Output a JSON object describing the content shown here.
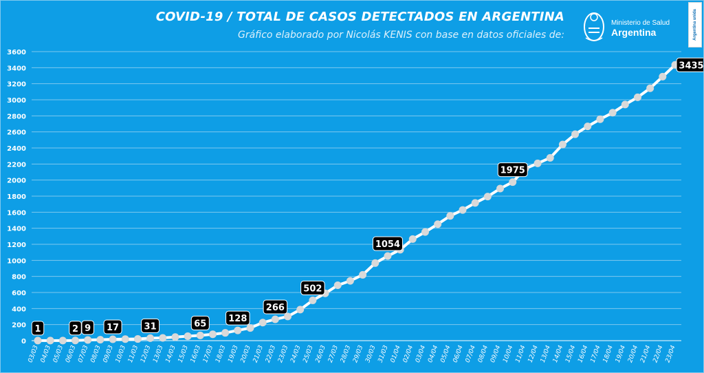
{
  "header": {
    "title": "COVID-19  /  TOTAL DE CASOS DETECTADOS EN ARGENTINA",
    "subtitle": "Gráfico elaborado por Nicolás KENIS con base en datos oficiales de:",
    "logo_line1": "Ministerio de Salud",
    "logo_line2": "Argentina",
    "badge_text": "Argentina unida"
  },
  "colors": {
    "background": "#0e9ee6",
    "grid": "#7fc8ee",
    "line": "#ffffff",
    "marker": "#d9d9d9",
    "label_bg": "#000000",
    "label_text": "#ffffff"
  },
  "chart_data": {
    "type": "line",
    "title": "COVID-19  /  TOTAL DE CASOS DETECTADOS EN ARGENTINA",
    "xlabel": "",
    "ylabel": "",
    "ylim": [
      0,
      3600
    ],
    "yticks": [
      0,
      200,
      400,
      600,
      800,
      1000,
      1200,
      1400,
      1600,
      1800,
      2000,
      2200,
      2400,
      2600,
      2800,
      3000,
      3200,
      3400,
      3600
    ],
    "grid": true,
    "legend": "none",
    "categories": [
      "03/03",
      "04/03",
      "05/03",
      "06/03",
      "07/03",
      "08/03",
      "09/03",
      "10/03",
      "11/03",
      "12/03",
      "13/03",
      "14/03",
      "15/03",
      "16/03",
      "17/03",
      "18/03",
      "19/03",
      "20/03",
      "21/03",
      "22/03",
      "23/03",
      "24/03",
      "25/03",
      "26/03",
      "27/03",
      "28/03",
      "29/03",
      "30/03",
      "31/03",
      "01/04",
      "02/04",
      "03/04",
      "04/04",
      "05/04",
      "06/04",
      "07/04",
      "08/04",
      "09/04",
      "10/04",
      "11/04",
      "12/04",
      "13/04",
      "14/04",
      "15/04",
      "16/04",
      "17/04",
      "18/04",
      "19/04",
      "20/04",
      "21/04",
      "22/04",
      "23/04"
    ],
    "values": [
      1,
      1,
      1,
      2,
      9,
      12,
      17,
      19,
      21,
      31,
      34,
      45,
      56,
      65,
      79,
      97,
      128,
      158,
      225,
      266,
      301,
      387,
      502,
      589,
      690,
      745,
      820,
      966,
      1054,
      1133,
      1265,
      1353,
      1451,
      1554,
      1628,
      1715,
      1795,
      1894,
      1975,
      2142,
      2208,
      2277,
      2443,
      2571,
      2669,
      2758,
      2839,
      2941,
      3031,
      3144,
      3288,
      3435
    ],
    "data_labels": [
      {
        "index": 0,
        "text": "1"
      },
      {
        "index": 3,
        "text": "2"
      },
      {
        "index": 4,
        "text": "9"
      },
      {
        "index": 6,
        "text": "17"
      },
      {
        "index": 9,
        "text": "31"
      },
      {
        "index": 13,
        "text": "65"
      },
      {
        "index": 16,
        "text": "128"
      },
      {
        "index": 19,
        "text": "266"
      },
      {
        "index": 22,
        "text": "502"
      },
      {
        "index": 28,
        "text": "1054"
      },
      {
        "index": 38,
        "text": "1975"
      },
      {
        "index": 51,
        "text": "3435"
      }
    ]
  }
}
